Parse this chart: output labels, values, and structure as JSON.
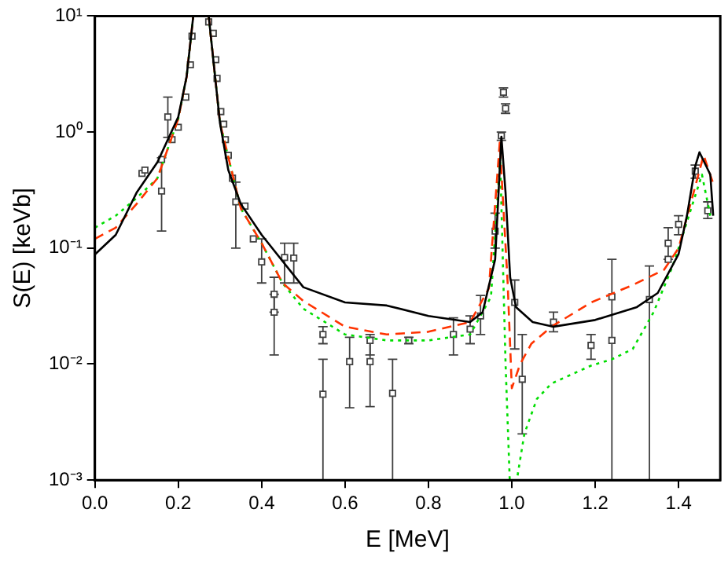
{
  "chart_data": {
    "type": "line",
    "xlabel": "E [MeV]",
    "ylabel": "S(E) [keVb]",
    "log": "y",
    "grid": false,
    "xlim": [
      0,
      1.5
    ],
    "xticks": [
      {
        "value": 0,
        "label": "0.0"
      },
      0.2,
      0.4,
      0.6,
      0.8,
      {
        "value": 1,
        "label": "1.0"
      },
      1.2,
      1.4
    ],
    "ylim": [
      0.001,
      10
    ],
    "yticks": [
      {
        "value": 0.001,
        "label": "10⁻³"
      },
      {
        "value": 0.01,
        "label": "10⁻²"
      },
      {
        "value": 0.1,
        "label": "10⁻¹"
      },
      {
        "value": 1,
        "label": "10⁰"
      },
      {
        "value": 10,
        "label": "10¹"
      }
    ],
    "series": [
      {
        "type": "line",
        "color": "#000000",
        "line_style": "solid",
        "marker": "none",
        "x": [
          0,
          0.05,
          0.1,
          0.15,
          0.2,
          0.22,
          0.236,
          0.255,
          0.273,
          0.3,
          0.32,
          0.35,
          0.4,
          0.5,
          0.6,
          0.7,
          0.8,
          0.9,
          0.93,
          0.96,
          0.975,
          0.985,
          0.996,
          1.01,
          1.05,
          1.1,
          1.2,
          1.3,
          1.35,
          1.4,
          1.42,
          1.44,
          1.45,
          1.476,
          1.483
        ],
        "values": [
          0.088,
          0.13,
          0.3,
          0.55,
          1.35,
          3,
          10,
          null,
          10,
          1.2,
          0.47,
          0.24,
          0.13,
          0.046,
          0.034,
          0.032,
          0.026,
          0.023,
          0.028,
          0.08,
          0.91,
          0.3,
          0.056,
          0.031,
          0.023,
          0.021,
          0.024,
          0.031,
          0.041,
          0.089,
          0.19,
          0.51,
          0.67,
          0.43,
          0.19
        ]
      },
      {
        "type": "line",
        "color": "#ff3300",
        "line_style": "dashed",
        "marker": "none",
        "x": [
          0,
          0.05,
          0.1,
          0.15,
          0.2,
          0.22,
          0.236,
          0.255,
          0.273,
          0.3,
          0.35,
          0.4,
          0.45,
          0.5,
          0.6,
          0.7,
          0.8,
          0.9,
          0.945,
          0.971,
          0.99,
          1.0,
          1.02,
          1.047,
          1.095,
          1.19,
          1.29,
          1.365,
          1.4,
          1.46,
          1.483
        ],
        "values": [
          0.12,
          0.15,
          0.24,
          0.4,
          1.3,
          3,
          10,
          null,
          10,
          1.2,
          0.22,
          0.11,
          0.05,
          0.035,
          0.021,
          0.018,
          0.019,
          0.023,
          0.045,
          0.81,
          0.05,
          0.0062,
          0.01,
          0.015,
          0.021,
          0.034,
          0.048,
          0.065,
          0.1,
          0.63,
          0.36
        ]
      },
      {
        "type": "line",
        "color": "#00dd00",
        "line_style": "dotted",
        "marker": "none",
        "x": [
          0,
          0.05,
          0.1,
          0.15,
          0.2,
          0.22,
          0.236,
          0.255,
          0.273,
          0.3,
          0.35,
          0.4,
          0.45,
          0.5,
          0.6,
          0.7,
          0.8,
          0.9,
          0.95,
          0.972,
          0.985,
          0.995,
          1.012,
          1.03,
          1.06,
          1.095,
          1.19,
          1.24,
          1.29,
          1.34,
          1.385,
          1.4,
          1.456,
          1.476
        ],
        "values": [
          0.15,
          0.19,
          0.27,
          0.4,
          1.3,
          3,
          10,
          null,
          10,
          1.2,
          0.22,
          0.11,
          0.05,
          0.03,
          0.018,
          0.016,
          0.016,
          0.018,
          0.038,
          0.6,
          0.01,
          0.001,
          0.001,
          0.0025,
          0.005,
          0.0068,
          0.0097,
          0.011,
          0.0135,
          0.028,
          0.069,
          0.1,
          0.43,
          0.19
        ]
      },
      {
        "type": "scatter",
        "color": "#404040",
        "marker": "square",
        "x": [
          0.113,
          0.12,
          0.16,
          0.16,
          0.175,
          0.185,
          0.2,
          0.218,
          0.229,
          0.233,
          0.273,
          0.284,
          0.29,
          0.293,
          0.302,
          0.309,
          0.313,
          0.32,
          0.33,
          0.338,
          0.36,
          0.38,
          0.4,
          0.43,
          0.43,
          0.455,
          0.477,
          0.547,
          0.547,
          0.611,
          0.66,
          0.66,
          0.714,
          0.753,
          0.86,
          0.9,
          0.925,
          0.96,
          0.975,
          0.98,
          0.985,
          1.007,
          1.025,
          1.1,
          1.19,
          1.24,
          1.24,
          1.33,
          1.375,
          1.375,
          1.4,
          1.44,
          1.47
        ],
        "values": [
          0.44,
          0.47,
          0.31,
          0.58,
          1.35,
          0.86,
          1.1,
          2.0,
          3.8,
          6.7,
          8.9,
          7.1,
          4.2,
          2.9,
          1.5,
          1.17,
          0.86,
          0.63,
          0.4,
          0.25,
          0.23,
          0.12,
          0.076,
          0.04,
          0.028,
          0.083,
          0.082,
          0.018,
          0.0055,
          0.0105,
          0.016,
          0.0105,
          0.0056,
          0.016,
          0.018,
          0.02,
          0.026,
          0.14,
          0.93,
          2.2,
          1.6,
          0.034,
          0.0074,
          0.023,
          0.0145,
          0.038,
          0.016,
          0.036,
          0.11,
          0.08,
          0.16,
          0.46,
          0.21
        ],
        "errors": [
          null,
          null,
          [
            0.14,
            0.6
          ],
          null,
          [
            0.9,
            2.0
          ],
          null,
          null,
          null,
          null,
          null,
          null,
          null,
          null,
          null,
          null,
          null,
          null,
          null,
          null,
          [
            0.1,
            0.37
          ],
          null,
          null,
          [
            0.05,
            0.12
          ],
          [
            0.028,
            0.056
          ],
          [
            0.012,
            0.04
          ],
          [
            0.05,
            0.11
          ],
          [
            0.05,
            0.11
          ],
          [
            0.015,
            0.021
          ],
          [
            0.001,
            0.011
          ],
          [
            0.0042,
            0.017
          ],
          [
            0.012,
            0.018
          ],
          [
            0.0043,
            0.017
          ],
          [
            0.001,
            0.011
          ],
          [
            0.015,
            0.017
          ],
          [
            0.012,
            0.025
          ],
          [
            0.015,
            0.026
          ],
          [
            0.018,
            0.039
          ],
          [
            0.1,
            0.2
          ],
          [
            0.85,
            1.0
          ],
          [
            2.0,
            2.4
          ],
          [
            1.45,
            1.75
          ],
          [
            0.0135,
            0.053
          ],
          [
            0.0025,
            0.018
          ],
          [
            0.019,
            0.028
          ],
          [
            0.011,
            0.018
          ],
          [
            0.001,
            0.08
          ],
          null,
          [
            0.001,
            0.07
          ],
          [
            0.08,
            0.15
          ],
          null,
          [
            0.13,
            0.19
          ],
          [
            0.4,
            0.52
          ],
          [
            0.18,
            0.25
          ]
        ]
      }
    ]
  }
}
